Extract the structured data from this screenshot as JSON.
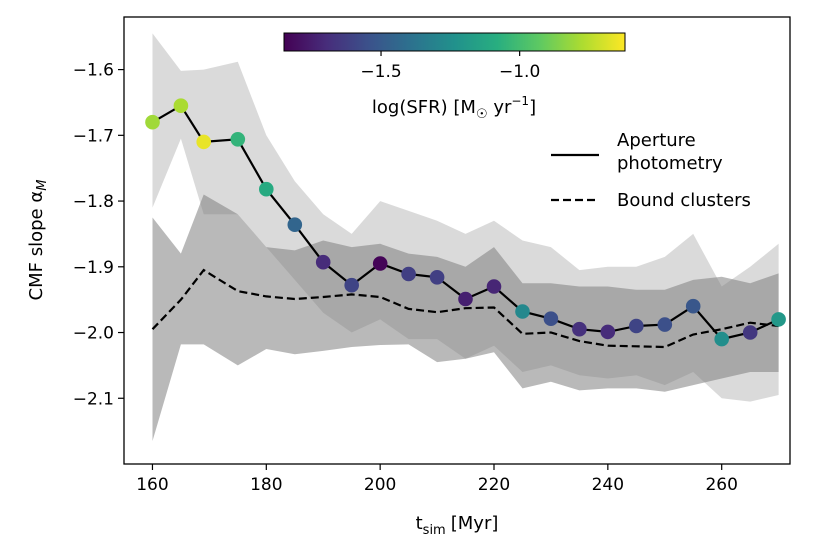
{
  "chart_data": {
    "type": "line",
    "xlabel": "t",
    "xlabel_sub": "sim",
    "xlabel_unit": "[Myr]",
    "ylabel": "CMF slope α",
    "ylabel_sub": "M",
    "xlim": [
      155,
      272
    ],
    "ylim": [
      -2.2,
      -1.52
    ],
    "xticks": [
      160,
      180,
      200,
      220,
      240,
      260
    ],
    "xtick_labels": [
      "160",
      "180",
      "200",
      "220",
      "240",
      "260"
    ],
    "yticks": [
      -1.6,
      -1.7,
      -1.8,
      -1.9,
      -2.0,
      -2.1
    ],
    "ytick_labels": [
      "−1.6",
      "−1.7",
      "−1.8",
      "−1.9",
      "−2.0",
      "−2.1"
    ],
    "colorbar": {
      "label": "log(SFR) [M",
      "label_sub": "☉",
      "label_unit": " yr",
      "label_sup": "−1",
      "label_end": "]",
      "range": [
        -1.85,
        -0.62
      ],
      "ticks": [
        -1.5,
        -1.0
      ],
      "tick_labels": [
        "−1.5",
        "−1.0"
      ]
    },
    "series": [
      {
        "name": "Aperture photometry",
        "legend_line1": "Aperture",
        "legend_line2": "photometry",
        "style": "solid",
        "points": [
          {
            "x": 160,
            "y": -1.68,
            "sfr": -0.8
          },
          {
            "x": 165,
            "y": -1.655,
            "sfr": -0.78
          },
          {
            "x": 169,
            "y": -1.71,
            "sfr": -0.66
          },
          {
            "x": 175,
            "y": -1.706,
            "sfr": -1.05
          },
          {
            "x": 180,
            "y": -1.782,
            "sfr": -1.1
          },
          {
            "x": 185,
            "y": -1.836,
            "sfr": -1.45
          },
          {
            "x": 190,
            "y": -1.893,
            "sfr": -1.7
          },
          {
            "x": 195,
            "y": -1.928,
            "sfr": -1.6
          },
          {
            "x": 200,
            "y": -1.895,
            "sfr": -1.84
          },
          {
            "x": 205,
            "y": -1.911,
            "sfr": -1.62
          },
          {
            "x": 210,
            "y": -1.916,
            "sfr": -1.62
          },
          {
            "x": 215,
            "y": -1.949,
            "sfr": -1.74
          },
          {
            "x": 220,
            "y": -1.93,
            "sfr": -1.72
          },
          {
            "x": 225,
            "y": -1.968,
            "sfr": -1.28
          },
          {
            "x": 230,
            "y": -1.979,
            "sfr": -1.55
          },
          {
            "x": 235,
            "y": -1.995,
            "sfr": -1.68
          },
          {
            "x": 240,
            "y": -1.999,
            "sfr": -1.7
          },
          {
            "x": 245,
            "y": -1.99,
            "sfr": -1.6
          },
          {
            "x": 250,
            "y": -1.988,
            "sfr": -1.55
          },
          {
            "x": 255,
            "y": -1.96,
            "sfr": -1.52
          },
          {
            "x": 260,
            "y": -2.01,
            "sfr": -1.25
          },
          {
            "x": 265,
            "y": -2.0,
            "sfr": -1.65
          },
          {
            "x": 270,
            "y": -1.98,
            "sfr": -1.2
          }
        ],
        "band": {
          "x": [
            160,
            165,
            169,
            175,
            180,
            185,
            190,
            195,
            200,
            205,
            210,
            215,
            220,
            225,
            230,
            235,
            240,
            245,
            250,
            255,
            260,
            265,
            270
          ],
          "upper": [
            -1.545,
            -1.602,
            -1.6,
            -1.588,
            -1.7,
            -1.77,
            -1.82,
            -1.85,
            -1.8,
            -1.815,
            -1.83,
            -1.85,
            -1.83,
            -1.86,
            -1.87,
            -1.905,
            -1.9,
            -1.9,
            -1.885,
            -1.85,
            -1.93,
            -1.9,
            -1.865
          ],
          "lower": [
            -1.81,
            -1.705,
            -1.82,
            -1.82,
            -1.87,
            -1.92,
            -1.97,
            -2.0,
            -1.98,
            -2.01,
            -2.01,
            -2.04,
            -2.02,
            -2.06,
            -2.05,
            -2.065,
            -2.07,
            -2.065,
            -2.08,
            -2.06,
            -2.1,
            -2.105,
            -2.095
          ]
        }
      },
      {
        "name": "Bound clusters",
        "style": "dashed",
        "x": [
          160,
          165,
          169,
          175,
          180,
          185,
          190,
          195,
          200,
          205,
          210,
          215,
          220,
          225,
          230,
          235,
          240,
          245,
          250,
          255,
          260,
          265,
          270
        ],
        "y": [
          -1.995,
          -1.95,
          -1.905,
          -1.937,
          -1.945,
          -1.949,
          -1.946,
          -1.942,
          -1.946,
          -1.964,
          -1.969,
          -1.963,
          -1.962,
          -2.002,
          -2.0,
          -2.013,
          -2.02,
          -2.021,
          -2.022,
          -2.003,
          -1.995,
          -1.985,
          -1.99
        ],
        "band": {
          "x": [
            160,
            165,
            169,
            175,
            180,
            185,
            190,
            195,
            200,
            205,
            210,
            215,
            220,
            225,
            230,
            235,
            240,
            245,
            250,
            255,
            260,
            265,
            270
          ],
          "upper": [
            -1.825,
            -1.88,
            -1.79,
            -1.82,
            -1.87,
            -1.875,
            -1.86,
            -1.87,
            -1.865,
            -1.88,
            -1.885,
            -1.9,
            -1.87,
            -1.925,
            -1.925,
            -1.93,
            -1.93,
            -1.935,
            -1.935,
            -1.92,
            -1.915,
            -1.925,
            -1.91
          ],
          "lower": [
            -2.165,
            -2.018,
            -2.018,
            -2.05,
            -2.025,
            -2.033,
            -2.028,
            -2.022,
            -2.019,
            -2.018,
            -2.045,
            -2.04,
            -2.03,
            -2.085,
            -2.075,
            -2.088,
            -2.085,
            -2.085,
            -2.09,
            -2.08,
            -2.07,
            -2.06,
            -2.06
          ]
        }
      }
    ]
  }
}
